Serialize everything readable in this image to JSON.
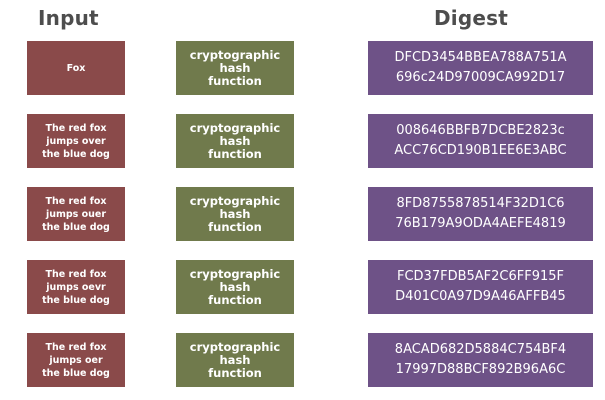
{
  "headers": {
    "input": "Input",
    "digest": "Digest"
  },
  "colors": {
    "input_box": "#8a4a4a",
    "hash_box": "#707a4c",
    "digest_box": "#6e5287",
    "header_text": "#4d4d4d"
  },
  "rows": [
    {
      "input": "Fox",
      "function": "cryptographic\nhash\nfunction",
      "digest": [
        "DFCD3454BBEA788A751A",
        "696c24D97009CA992D17"
      ]
    },
    {
      "input": "The red fox\njumps over\nthe blue dog",
      "function": "cryptographic\nhash\nfunction",
      "digest": [
        "008646BBFB7DCBE2823c",
        "ACC76CD190B1EE6E3ABC"
      ]
    },
    {
      "input": "The red fox\njumps ouer\nthe blue dog",
      "function": "cryptographic\nhash\nfunction",
      "digest": [
        "8FD8755878514F32D1C6",
        "76B179A9ODA4AEFE4819"
      ]
    },
    {
      "input": "The red fox\njumps oevr\nthe blue dog",
      "function": "cryptographic\nhash\nfunction",
      "digest": [
        "FCD37FDB5AF2C6FF915F",
        "D401C0A97D9A46AFFB45"
      ]
    },
    {
      "input": "The red fox\njumps oer\nthe blue dog",
      "function": "cryptographic\nhash\nfunction",
      "digest": [
        "8ACAD682D5884C754BF4",
        "17997D88BCF892B96A6C"
      ]
    }
  ]
}
